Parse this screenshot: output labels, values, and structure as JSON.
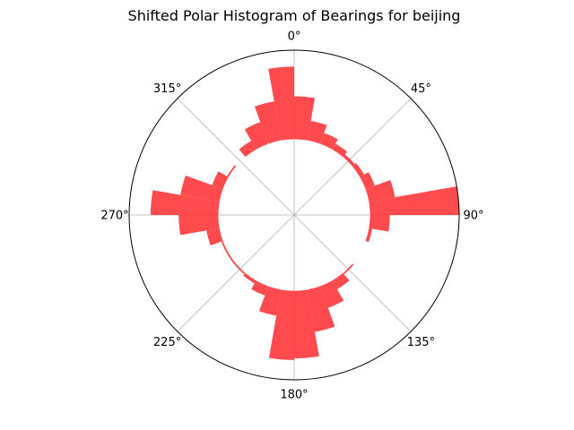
{
  "chart_data": {
    "type": "bar",
    "subtype": "polar-histogram",
    "title": "Shifted Polar Histogram of Bearings for beijing",
    "theta_direction": "clockwise",
    "theta_zero": "top",
    "theta_ticks": [
      "0°",
      "45°",
      "90°",
      "135°",
      "180°",
      "225°",
      "270°",
      "315°"
    ],
    "bin_width_deg": 10,
    "bar_color": "#ff4045",
    "grid": true,
    "r_inner": 0.46,
    "rlim": [
      0,
      1.0
    ],
    "bin_start_deg": [
      -10,
      0,
      10,
      20,
      30,
      40,
      50,
      60,
      70,
      80,
      90,
      100,
      110,
      120,
      130,
      140,
      150,
      160,
      170,
      180,
      190,
      200,
      210,
      220,
      230,
      240,
      250,
      260,
      270,
      280,
      290,
      300,
      310,
      320,
      330,
      340
    ],
    "values": [
      0.9,
      0.72,
      0.58,
      0.53,
      0.5,
      0.48,
      0.49,
      0.52,
      0.62,
      1.0,
      0.58,
      0.48,
      0.46,
      0.46,
      0.47,
      0.52,
      0.6,
      0.72,
      0.87,
      0.88,
      0.62,
      0.52,
      0.48,
      0.47,
      0.47,
      0.47,
      0.54,
      0.7,
      0.87,
      0.7,
      0.53,
      0.47,
      0.46,
      0.52,
      0.6,
      0.7
    ]
  }
}
